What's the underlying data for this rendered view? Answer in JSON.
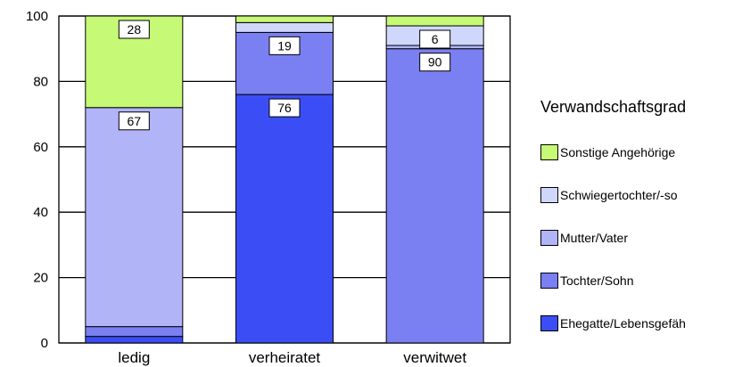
{
  "chart_data": {
    "type": "bar",
    "stacked": true,
    "categories": [
      "ledig",
      "verheiratet",
      "verwitwet"
    ],
    "ylim": [
      0,
      100
    ],
    "yticks": [
      0,
      20,
      40,
      60,
      80,
      100
    ],
    "grid": true,
    "legend_title": "Verwandschaftsgrad",
    "legend_position": "right",
    "series": [
      {
        "name": "Ehegatte/Lebensgefäh",
        "color": "#3b4ef5",
        "values": [
          2,
          76,
          0
        ]
      },
      {
        "name": "Tochter/Sohn",
        "color": "#7a7ff2",
        "values": [
          3,
          19,
          90
        ]
      },
      {
        "name": "Mutter/Vater",
        "color": "#b2b4f8",
        "values": [
          67,
          0,
          1
        ]
      },
      {
        "name": "Schwiegertochter/-so",
        "color": "#cfd8fb",
        "values": [
          0,
          3,
          6
        ]
      },
      {
        "name": "Sonstige Angehörige",
        "color": "#c6f975",
        "values": [
          28,
          2,
          3
        ]
      }
    ],
    "data_labels": [
      {
        "category": "ledig",
        "series": "Sonstige Angehörige",
        "text": "28"
      },
      {
        "category": "ledig",
        "series": "Mutter/Vater",
        "text": "67"
      },
      {
        "category": "verheiratet",
        "series": "Tochter/Sohn",
        "text": "19"
      },
      {
        "category": "verheiratet",
        "series": "Ehegatte/Lebensgefäh",
        "text": "76"
      },
      {
        "category": "verwitwet",
        "series": "Schwiegertochter/-so",
        "text": "6"
      },
      {
        "category": "verwitwet",
        "series": "Tochter/Sohn",
        "text": "90"
      }
    ]
  }
}
